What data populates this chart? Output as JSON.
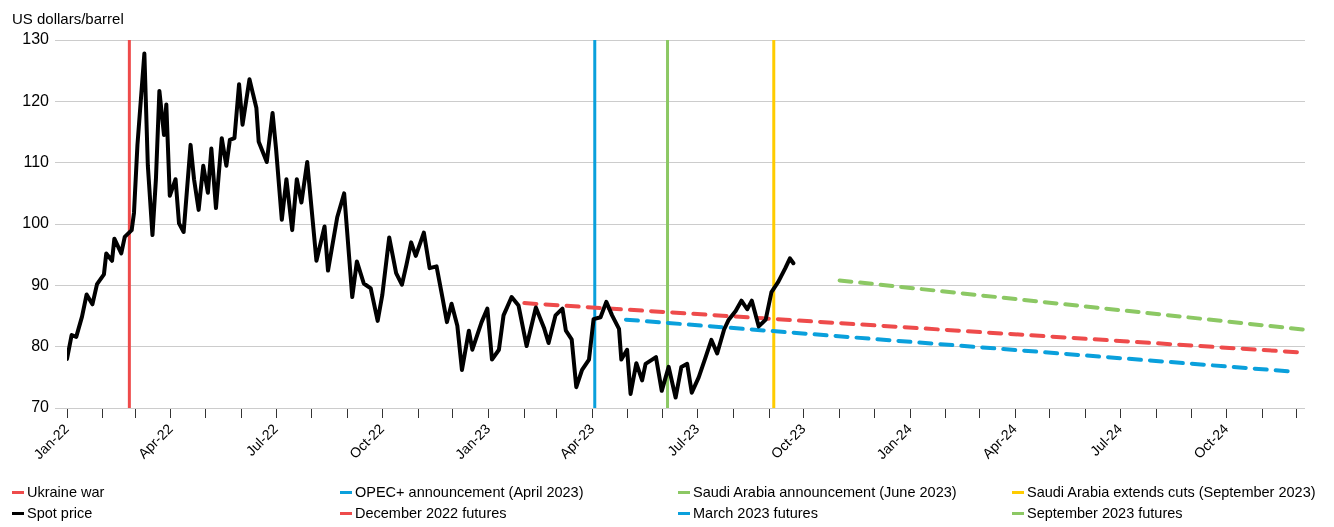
{
  "chart_data": {
    "type": "line",
    "ylabel": "US dollars/barrel",
    "xlim": [
      "2022-01-01",
      "2024-12-08"
    ],
    "xticks": [
      {
        "value": "2022-01-01",
        "label": "Jan-22"
      },
      {
        "value": "2022-02-01",
        "label": null
      },
      {
        "value": "2022-03-01",
        "label": null
      },
      {
        "value": "2022-04-01",
        "label": "Apr-22"
      },
      {
        "value": "2022-05-01",
        "label": null
      },
      {
        "value": "2022-06-01",
        "label": null
      },
      {
        "value": "2022-07-01",
        "label": "Jul-22"
      },
      {
        "value": "2022-08-01",
        "label": null
      },
      {
        "value": "2022-09-01",
        "label": null
      },
      {
        "value": "2022-10-01",
        "label": "Oct-22"
      },
      {
        "value": "2022-11-01",
        "label": null
      },
      {
        "value": "2022-12-01",
        "label": null
      },
      {
        "value": "2023-01-01",
        "label": "Jan-23"
      },
      {
        "value": "2023-02-01",
        "label": null
      },
      {
        "value": "2023-03-01",
        "label": null
      },
      {
        "value": "2023-04-01",
        "label": "Apr-23"
      },
      {
        "value": "2023-05-01",
        "label": null
      },
      {
        "value": "2023-06-01",
        "label": null
      },
      {
        "value": "2023-07-01",
        "label": "Jul-23"
      },
      {
        "value": "2023-08-01",
        "label": null
      },
      {
        "value": "2023-09-01",
        "label": null
      },
      {
        "value": "2023-10-01",
        "label": "Oct-23"
      },
      {
        "value": "2023-11-01",
        "label": null
      },
      {
        "value": "2023-12-01",
        "label": null
      },
      {
        "value": "2024-01-01",
        "label": "Jan-24"
      },
      {
        "value": "2024-02-01",
        "label": null
      },
      {
        "value": "2024-03-01",
        "label": null
      },
      {
        "value": "2024-04-01",
        "label": "Apr-24"
      },
      {
        "value": "2024-05-01",
        "label": null
      },
      {
        "value": "2024-06-01",
        "label": null
      },
      {
        "value": "2024-07-01",
        "label": "Jul-24"
      },
      {
        "value": "2024-08-01",
        "label": null
      },
      {
        "value": "2024-09-01",
        "label": null
      },
      {
        "value": "2024-10-01",
        "label": "Oct-24"
      },
      {
        "value": "2024-11-01",
        "label": null
      },
      {
        "value": "2024-12-01",
        "label": null
      }
    ],
    "ylim": [
      70,
      130
    ],
    "yticks": [
      70,
      80,
      90,
      100,
      110,
      120,
      130
    ],
    "grid": "y",
    "legend": "bottom",
    "ref_lines": [
      {
        "axis": "x",
        "value": "2022-02-24",
        "label": "Ukraine war",
        "color": "#ee4b4b",
        "line_style": "solid"
      },
      {
        "axis": "x",
        "value": "2023-04-03",
        "label": "OPEC+ announcement (April 2023)",
        "color": "#0aa0dc",
        "line_style": "solid"
      },
      {
        "axis": "x",
        "value": "2023-06-05",
        "label": "Saudi Arabia announcement (June 2023)",
        "color": "#8cc864",
        "line_style": "solid"
      },
      {
        "axis": "x",
        "value": "2023-09-05",
        "label": "Saudi Arabia extends cuts (September 2023)",
        "color": "#ffcc00",
        "line_style": "solid"
      }
    ],
    "series": [
      {
        "name": "Spot price",
        "color": "#000000",
        "line_style": "solid",
        "x": [
          "2022-01-01",
          "2022-01-05",
          "2022-01-09",
          "2022-01-14",
          "2022-01-18",
          "2022-01-23",
          "2022-01-27",
          "2022-02-02",
          "2022-02-04",
          "2022-02-09",
          "2022-02-11",
          "2022-02-17",
          "2022-02-20",
          "2022-02-26",
          "2022-02-28",
          "2022-03-03",
          "2022-03-09",
          "2022-03-12",
          "2022-03-16",
          "2022-03-19",
          "2022-03-22",
          "2022-03-26",
          "2022-03-28",
          "2022-03-31",
          "2022-04-05",
          "2022-04-08",
          "2022-04-12",
          "2022-04-18",
          "2022-04-21",
          "2022-04-25",
          "2022-04-29",
          "2022-05-03",
          "2022-05-06",
          "2022-05-10",
          "2022-05-15",
          "2022-05-19",
          "2022-05-22",
          "2022-05-26",
          "2022-05-30",
          "2022-06-02",
          "2022-06-08",
          "2022-06-14",
          "2022-06-16",
          "2022-06-23",
          "2022-06-28",
          "2022-07-01",
          "2022-07-06",
          "2022-07-10",
          "2022-07-15",
          "2022-07-19",
          "2022-07-23",
          "2022-07-28",
          "2022-08-05",
          "2022-08-12",
          "2022-08-15",
          "2022-08-23",
          "2022-08-29",
          "2022-09-05",
          "2022-09-09",
          "2022-09-15",
          "2022-09-21",
          "2022-09-27",
          "2022-10-01",
          "2022-10-07",
          "2022-10-13",
          "2022-10-18",
          "2022-10-22",
          "2022-10-26",
          "2022-10-30",
          "2022-11-06",
          "2022-11-11",
          "2022-11-17",
          "2022-11-22",
          "2022-11-26",
          "2022-11-30",
          "2022-12-05",
          "2022-12-09",
          "2022-12-15",
          "2022-12-18",
          "2022-12-26",
          "2022-12-31",
          "2023-01-04",
          "2023-01-10",
          "2023-01-14",
          "2023-01-21",
          "2023-01-27",
          "2023-02-03",
          "2023-02-11",
          "2023-02-18",
          "2023-02-22",
          "2023-02-28",
          "2023-03-06",
          "2023-03-09",
          "2023-03-14",
          "2023-03-18",
          "2023-03-23",
          "2023-03-29",
          "2023-04-02",
          "2023-04-08",
          "2023-04-13",
          "2023-04-18",
          "2023-04-24",
          "2023-04-26",
          "2023-05-01",
          "2023-05-04",
          "2023-05-09",
          "2023-05-14",
          "2023-05-17",
          "2023-05-26",
          "2023-05-31",
          "2023-06-06",
          "2023-06-12",
          "2023-06-17",
          "2023-06-22",
          "2023-06-26",
          "2023-07-02",
          "2023-07-08",
          "2023-07-13",
          "2023-07-18",
          "2023-07-24",
          "2023-07-28",
          "2023-08-03",
          "2023-08-08",
          "2023-08-13",
          "2023-08-17",
          "2023-08-23",
          "2023-08-29",
          "2023-09-03",
          "2023-09-09",
          "2023-09-15",
          "2023-09-19",
          "2023-09-22"
        ],
        "values": [
          78.0,
          81.9,
          81.6,
          84.9,
          88.5,
          86.9,
          90.2,
          91.8,
          95.2,
          94.0,
          97.6,
          95.2,
          97.9,
          99.0,
          101.8,
          112.9,
          127.8,
          109.5,
          98.2,
          107.3,
          121.7,
          114.5,
          119.5,
          104.6,
          107.3,
          100.1,
          98.7,
          112.9,
          107.3,
          102.3,
          109.5,
          105.1,
          112.3,
          102.6,
          114.0,
          109.5,
          113.7,
          114.0,
          122.8,
          116.2,
          123.6,
          118.9,
          113.4,
          110.1,
          118.1,
          112.3,
          100.7,
          107.3,
          99.0,
          107.3,
          103.5,
          110.1,
          94.0,
          99.6,
          92.4,
          101.1,
          105.0,
          88.1,
          93.9,
          90.3,
          89.5,
          84.2,
          88.4,
          97.8,
          92.0,
          90.1,
          93.4,
          97.0,
          94.8,
          98.6,
          92.8,
          93.1,
          88.1,
          84.0,
          87.0,
          83.4,
          76.2,
          82.6,
          79.5,
          84.0,
          86.2,
          77.9,
          79.5,
          85.1,
          88.1,
          86.7,
          80.1,
          86.4,
          83.1,
          80.6,
          85.1,
          86.2,
          82.6,
          81.2,
          73.4,
          76.2,
          77.9,
          84.5,
          84.8,
          87.3,
          85.1,
          82.9,
          77.9,
          79.5,
          72.3,
          77.3,
          74.5,
          77.2,
          78.3,
          72.8,
          76.7,
          71.7,
          76.7,
          77.2,
          72.5,
          75.0,
          78.3,
          81.1,
          78.9,
          82.8,
          84.4,
          85.8,
          87.5,
          86.1,
          87.5,
          83.3,
          84.4,
          88.9,
          90.6,
          92.8,
          94.4,
          93.6
        ]
      },
      {
        "name": "December 2022 futures",
        "color": "#ee4b4b",
        "line_style": "dashed",
        "x": [
          "2023-02-01",
          "2024-12-01"
        ],
        "values": [
          87.1,
          79.1
        ]
      },
      {
        "name": "March 2023 futures",
        "color": "#0aa0dc",
        "line_style": "dashed",
        "x": [
          "2023-04-30",
          "2024-11-23"
        ],
        "values": [
          84.4,
          76.0
        ]
      },
      {
        "name": "September 2023 futures",
        "color": "#8cc864",
        "line_style": "dashed",
        "x": [
          "2023-11-01",
          "2024-12-06"
        ],
        "values": [
          90.8,
          82.8
        ]
      }
    ]
  }
}
